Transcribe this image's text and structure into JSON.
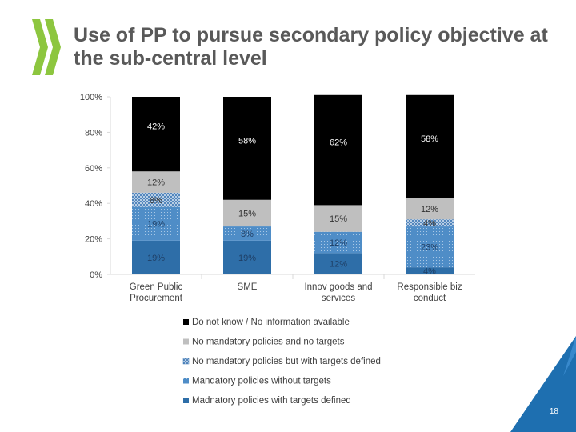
{
  "slide": {
    "title": "Use of PP to pursue secondary policy objective at the sub-central level",
    "page_number": "18",
    "logo_icon": "oecd-chevrons-logo-icon",
    "colors": {
      "logo": "#8dc63f",
      "title": "#595959",
      "corner": "#1e6fb0"
    }
  },
  "chart_data": {
    "type": "bar",
    "stacked": true,
    "categories": [
      "Green Public Procurement",
      "SME",
      "Innov goods and services",
      "Responsible biz conduct"
    ],
    "category_label_lines": [
      [
        "Green Public",
        "Procurement"
      ],
      [
        "SME"
      ],
      [
        "Innov goods and",
        "services"
      ],
      [
        "Responsible biz",
        "conduct"
      ]
    ],
    "ylim": [
      0,
      100
    ],
    "yticks": [
      "0%",
      "20%",
      "40%",
      "60%",
      "80%",
      "100%"
    ],
    "grid": false,
    "legend_position": "bottom",
    "series": [
      {
        "name": "Madnatory policies with targets defined",
        "values": [
          19,
          19,
          12,
          4
        ],
        "labels": [
          "19%",
          "19%",
          "12%",
          "4%"
        ],
        "color": "#2e6ea8",
        "pattern": "solid"
      },
      {
        "name": "Mandatory policies without targets",
        "values": [
          19,
          8,
          12,
          23
        ],
        "labels": [
          "19%",
          "8%",
          "12%",
          "23%"
        ],
        "color": "#4f8dc7",
        "pattern": "dots"
      },
      {
        "name": "No mandatory policies but with targets defined",
        "values": [
          8,
          0,
          0,
          4
        ],
        "labels": [
          "8%",
          "0%",
          "0%",
          "4%"
        ],
        "color": "#8fb3d4",
        "pattern": "crosshatch"
      },
      {
        "name": "No mandatory policies and no targets",
        "values": [
          12,
          15,
          15,
          12
        ],
        "labels": [
          "12%",
          "15%",
          "15%",
          "12%"
        ],
        "color": "#bfbfbf",
        "pattern": "solid"
      },
      {
        "name": "Do not know / No information available",
        "values": [
          42,
          58,
          62,
          58
        ],
        "labels": [
          "42%",
          "58%",
          "62%",
          "58%"
        ],
        "color": "#000000",
        "pattern": "solid"
      }
    ]
  }
}
